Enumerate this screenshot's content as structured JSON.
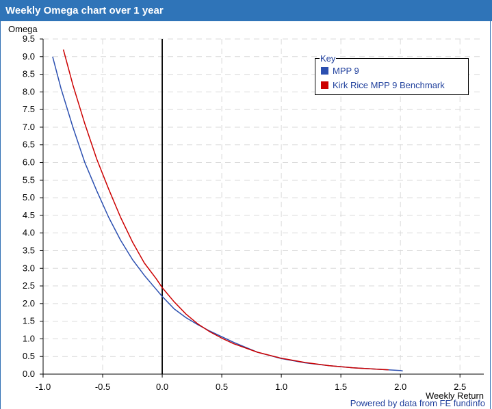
{
  "title": "Weekly Omega chart over 1 year",
  "credit": "Powered by data from FE fundinfo",
  "chart_data": {
    "type": "line",
    "xlabel": "Weekly Return",
    "ylabel": "Omega",
    "xlim": [
      -1.0,
      2.7
    ],
    "ylim": [
      0.0,
      9.5
    ],
    "grid": true,
    "legend_title": "Key",
    "legend_position": "top-right",
    "x_ticks": [
      "-1.0",
      "-0.5",
      "0.0",
      "0.5",
      "1.0",
      "1.5",
      "2.0",
      "2.5"
    ],
    "x_tick_values": [
      -1.0,
      -0.5,
      0.0,
      0.5,
      1.0,
      1.5,
      2.0,
      2.5
    ],
    "y_ticks": [
      "0.0",
      "0.5",
      "1.0",
      "1.5",
      "2.0",
      "2.5",
      "3.0",
      "3.5",
      "4.0",
      "4.5",
      "5.0",
      "5.5",
      "6.0",
      "6.5",
      "7.0",
      "7.5",
      "8.0",
      "8.5",
      "9.0",
      "9.5"
    ],
    "y_tick_values": [
      0.0,
      0.5,
      1.0,
      1.5,
      2.0,
      2.5,
      3.0,
      3.5,
      4.0,
      4.5,
      5.0,
      5.5,
      6.0,
      6.5,
      7.0,
      7.5,
      8.0,
      8.5,
      9.0,
      9.5
    ],
    "series": [
      {
        "name": "MPP 9",
        "color": "#2b4fb0",
        "x": [
          -0.92,
          -0.85,
          -0.75,
          -0.65,
          -0.55,
          -0.45,
          -0.35,
          -0.25,
          -0.15,
          -0.05,
          0.0,
          0.1,
          0.2,
          0.3,
          0.4,
          0.5,
          0.6,
          0.8,
          1.0,
          1.2,
          1.4,
          1.6,
          1.8,
          2.0,
          2.02
        ],
        "y": [
          9.0,
          8.1,
          7.0,
          6.0,
          5.2,
          4.45,
          3.8,
          3.25,
          2.8,
          2.4,
          2.2,
          1.85,
          1.6,
          1.4,
          1.22,
          1.06,
          0.9,
          0.62,
          0.44,
          0.32,
          0.24,
          0.18,
          0.14,
          0.1,
          0.09
        ]
      },
      {
        "name": "Kirk Rice MPP 9 Benchmark",
        "color": "#cc0000",
        "x": [
          -0.83,
          -0.75,
          -0.65,
          -0.55,
          -0.45,
          -0.35,
          -0.25,
          -0.15,
          -0.05,
          0.0,
          0.1,
          0.2,
          0.3,
          0.4,
          0.5,
          0.6,
          0.8,
          1.0,
          1.2,
          1.4,
          1.6,
          1.8,
          1.9
        ],
        "y": [
          9.2,
          8.2,
          7.1,
          6.1,
          5.25,
          4.45,
          3.75,
          3.15,
          2.7,
          2.45,
          2.05,
          1.7,
          1.42,
          1.2,
          1.02,
          0.86,
          0.62,
          0.45,
          0.33,
          0.24,
          0.18,
          0.14,
          0.12
        ]
      }
    ]
  }
}
